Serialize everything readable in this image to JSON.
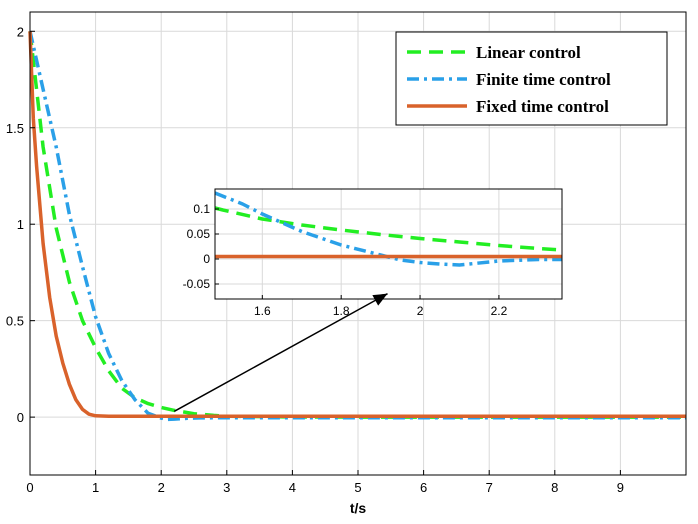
{
  "chart_data": {
    "type": "line",
    "title": "",
    "xlabel": "t/s",
    "ylabel": "",
    "xlim": [
      0,
      10
    ],
    "ylim": [
      -0.3,
      2.1
    ],
    "xticks": [
      0,
      1,
      2,
      3,
      4,
      5,
      6,
      7,
      8,
      9
    ],
    "yticks": [
      0,
      0.5,
      1,
      1.5,
      2
    ],
    "xtick_labels": [
      "0",
      "1",
      "2",
      "3",
      "4",
      "5",
      "6",
      "7",
      "8",
      "9"
    ],
    "ytick_labels": [
      "0",
      "0.5",
      "1",
      "1.5",
      "2"
    ],
    "grid": true,
    "legend_position": "top-right",
    "series": [
      {
        "name": "Linear control",
        "color": "#22ee22",
        "style": "dashed",
        "x": [
          0,
          0.2,
          0.4,
          0.6,
          0.8,
          1.0,
          1.2,
          1.4,
          1.6,
          1.8,
          2.0,
          2.2,
          2.5,
          2.8,
          3.0,
          4.0,
          5.0,
          6.0,
          7.0,
          8.0,
          9.0,
          10.0
        ],
        "y": [
          2.0,
          1.4,
          0.98,
          0.7,
          0.5,
          0.36,
          0.24,
          0.15,
          0.1,
          0.07,
          0.05,
          0.035,
          0.018,
          0.009,
          0.005,
          0.001,
          0,
          0,
          0,
          0,
          0,
          0
        ]
      },
      {
        "name": "Finite time control",
        "color": "#2aa0e8",
        "style": "dashdot",
        "x": [
          0,
          0.2,
          0.4,
          0.6,
          0.8,
          1.0,
          1.2,
          1.4,
          1.6,
          1.8,
          2.0,
          2.1,
          2.2,
          2.4,
          2.6,
          3.0,
          4.0,
          5.0,
          6.0,
          7.0,
          8.0,
          9.0,
          10.0
        ],
        "y": [
          2.0,
          1.7,
          1.4,
          1.05,
          0.78,
          0.52,
          0.33,
          0.19,
          0.09,
          0.02,
          -0.005,
          -0.012,
          -0.01,
          -0.006,
          -0.004,
          -0.003,
          -0.003,
          -0.003,
          -0.003,
          -0.003,
          -0.003,
          -0.003,
          -0.003
        ]
      },
      {
        "name": "Fixed time control",
        "color": "#d9622b",
        "style": "solid",
        "x": [
          0,
          0.05,
          0.1,
          0.2,
          0.3,
          0.4,
          0.5,
          0.6,
          0.7,
          0.8,
          0.9,
          1.0,
          1.2,
          1.5,
          2.0,
          3.0,
          5.0,
          7.0,
          10.0
        ],
        "y": [
          2.0,
          1.55,
          1.3,
          0.9,
          0.62,
          0.42,
          0.28,
          0.17,
          0.09,
          0.04,
          0.015,
          0.007,
          0.005,
          0.005,
          0.005,
          0.005,
          0.005,
          0.005,
          0.005
        ]
      }
    ],
    "inset": {
      "xlim": [
        1.48,
        2.36
      ],
      "ylim": [
        -0.08,
        0.14
      ],
      "xticks": [
        1.6,
        1.8,
        2,
        2.2
      ],
      "yticks": [
        -0.05,
        0,
        0.05,
        0.1
      ],
      "xtick_labels": [
        "1.6",
        "1.8",
        "2",
        "2.2"
      ],
      "ytick_labels": [
        "-0.05",
        "0",
        "0.05",
        "0.1"
      ],
      "series": [
        {
          "name": "Linear control",
          "x": [
            1.48,
            1.5,
            1.6,
            1.7,
            1.8,
            1.9,
            2.0,
            2.1,
            2.2,
            2.3,
            2.36
          ],
          "y": [
            0.102,
            0.098,
            0.08,
            0.068,
            0.058,
            0.049,
            0.041,
            0.034,
            0.027,
            0.021,
            0.018
          ]
        },
        {
          "name": "Finite time control",
          "x": [
            1.48,
            1.55,
            1.6,
            1.7,
            1.8,
            1.9,
            1.95,
            2.0,
            2.05,
            2.1,
            2.2,
            2.3,
            2.36
          ],
          "y": [
            0.132,
            0.11,
            0.09,
            0.055,
            0.028,
            0.008,
            -0.002,
            -0.007,
            -0.01,
            -0.012,
            -0.004,
            -0.001,
            -0.001
          ]
        },
        {
          "name": "Fixed time control",
          "x": [
            1.48,
            2.36
          ],
          "y": [
            0.005,
            0.005
          ]
        }
      ]
    },
    "annotation": {
      "type": "arrow",
      "from": [
        2.2,
        0.03
      ],
      "to": [
        5.45,
        0.64
      ]
    }
  }
}
